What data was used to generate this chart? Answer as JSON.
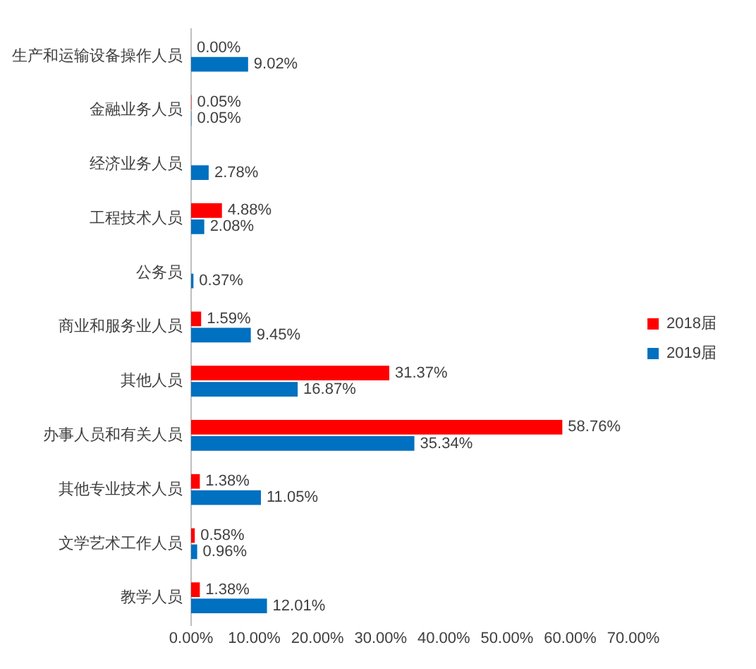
{
  "chart_data": {
    "type": "bar",
    "orientation": "horizontal",
    "categories": [
      "生产和运输设备操作人员",
      "金融业务人员",
      "经济业务人员",
      "工程技术人员",
      "公务员",
      "商业和服务业人员",
      "其他人员",
      "办事人员和有关人员",
      "其他专业技术人员",
      "文学艺术工作人员",
      "教学人员"
    ],
    "series": [
      {
        "name": "2018届",
        "color": "#ff0000",
        "values": [
          0.0,
          0.05,
          null,
          4.88,
          null,
          1.59,
          31.37,
          58.76,
          1.38,
          0.58,
          1.38
        ],
        "value_labels": [
          "0.00%",
          "0.05%",
          null,
          "4.88%",
          null,
          "1.59%",
          "31.37%",
          "58.76%",
          "1.38%",
          "0.58%",
          "1.38%"
        ]
      },
      {
        "name": "2019届",
        "color": "#0070c0",
        "values": [
          9.02,
          0.05,
          2.78,
          2.08,
          0.37,
          9.45,
          16.87,
          35.34,
          11.05,
          0.96,
          12.01
        ],
        "value_labels": [
          "9.02%",
          "0.05%",
          "2.78%",
          "2.08%",
          "0.37%",
          "9.45%",
          "16.87%",
          "35.34%",
          "11.05%",
          "0.96%",
          "12.01%"
        ]
      }
    ],
    "xlim": [
      0,
      70
    ],
    "xticks": [
      {
        "value": 0,
        "label": "0.00%"
      },
      {
        "value": 10,
        "label": "10.00%"
      },
      {
        "value": 20,
        "label": "20.00%"
      },
      {
        "value": 30,
        "label": "30.00%"
      },
      {
        "value": 40,
        "label": "40.00%"
      },
      {
        "value": 50,
        "label": "50.00%"
      },
      {
        "value": 60,
        "label": "60.00%"
      },
      {
        "value": 70,
        "label": "70.00%"
      }
    ],
    "grid": false,
    "legend": "right"
  }
}
